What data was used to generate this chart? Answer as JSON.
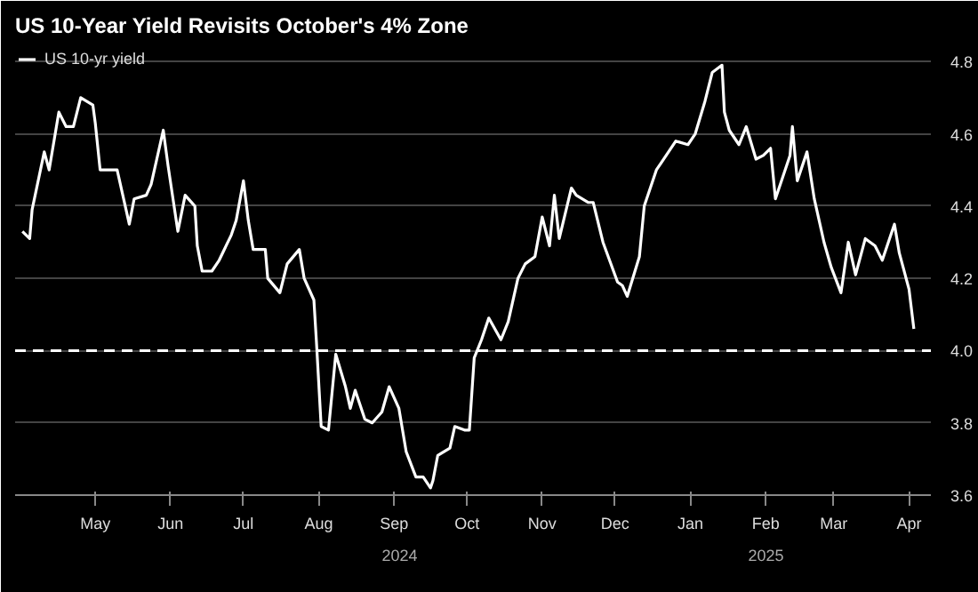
{
  "chart_data": {
    "type": "line",
    "title": "US 10-Year Yield Revisits October's 4% Zone",
    "x": [
      "2024-04-01",
      "2024-04-04",
      "2024-04-05",
      "2024-04-10",
      "2024-04-12",
      "2024-04-16",
      "2024-04-19",
      "2024-04-22",
      "2024-04-25",
      "2024-04-30",
      "2024-05-01",
      "2024-05-03",
      "2024-05-10",
      "2024-05-15",
      "2024-05-17",
      "2024-05-22",
      "2024-05-24",
      "2024-05-29",
      "2024-05-31",
      "2024-06-04",
      "2024-06-07",
      "2024-06-11",
      "2024-06-12",
      "2024-06-14",
      "2024-06-18",
      "2024-06-21",
      "2024-06-26",
      "2024-06-28",
      "2024-07-01",
      "2024-07-03",
      "2024-07-05",
      "2024-07-10",
      "2024-07-11",
      "2024-07-16",
      "2024-07-19",
      "2024-07-24",
      "2024-07-26",
      "2024-07-30",
      "2024-07-31",
      "2024-08-02",
      "2024-08-05",
      "2024-08-08",
      "2024-08-12",
      "2024-08-14",
      "2024-08-16",
      "2024-08-20",
      "2024-08-23",
      "2024-08-27",
      "2024-08-30",
      "2024-09-03",
      "2024-09-06",
      "2024-09-10",
      "2024-09-13",
      "2024-09-16",
      "2024-09-17",
      "2024-09-19",
      "2024-09-24",
      "2024-09-26",
      "2024-09-30",
      "2024-10-02",
      "2024-10-04",
      "2024-10-07",
      "2024-10-10",
      "2024-10-15",
      "2024-10-18",
      "2024-10-22",
      "2024-10-25",
      "2024-10-29",
      "2024-11-01",
      "2024-11-04",
      "2024-11-06",
      "2024-11-08",
      "2024-11-13",
      "2024-11-15",
      "2024-11-20",
      "2024-11-22",
      "2024-11-26",
      "2024-12-02",
      "2024-12-04",
      "2024-12-06",
      "2024-12-11",
      "2024-12-13",
      "2024-12-18",
      "2024-12-20",
      "2024-12-26",
      "2024-12-31",
      "2025-01-03",
      "2025-01-07",
      "2025-01-10",
      "2025-01-14",
      "2025-01-15",
      "2025-01-17",
      "2025-01-21",
      "2025-01-24",
      "2025-01-28",
      "2025-01-31",
      "2025-02-03",
      "2025-02-05",
      "2025-02-11",
      "2025-02-12",
      "2025-02-14",
      "2025-02-18",
      "2025-02-21",
      "2025-02-25",
      "2025-02-28",
      "2025-03-04",
      "2025-03-07",
      "2025-03-10",
      "2025-03-14",
      "2025-03-18",
      "2025-03-21",
      "2025-03-26",
      "2025-03-28",
      "2025-04-01",
      "2025-04-03"
    ],
    "series": [
      {
        "name": "US 10-yr yield",
        "color": "#ffffff",
        "values": [
          4.33,
          4.31,
          4.39,
          4.55,
          4.5,
          4.66,
          4.62,
          4.62,
          4.7,
          4.68,
          4.63,
          4.5,
          4.5,
          4.35,
          4.42,
          4.43,
          4.46,
          4.61,
          4.51,
          4.33,
          4.43,
          4.4,
          4.29,
          4.22,
          4.22,
          4.25,
          4.32,
          4.36,
          4.47,
          4.36,
          4.28,
          4.28,
          4.2,
          4.16,
          4.24,
          4.28,
          4.2,
          4.14,
          4.03,
          3.79,
          3.78,
          3.99,
          3.9,
          3.84,
          3.89,
          3.81,
          3.8,
          3.83,
          3.9,
          3.84,
          3.72,
          3.65,
          3.65,
          3.62,
          3.64,
          3.71,
          3.73,
          3.79,
          3.78,
          3.78,
          3.98,
          4.03,
          4.09,
          4.03,
          4.08,
          4.2,
          4.24,
          4.26,
          4.37,
          4.29,
          4.43,
          4.31,
          4.45,
          4.43,
          4.41,
          4.41,
          4.3,
          4.19,
          4.18,
          4.15,
          4.26,
          4.4,
          4.5,
          4.52,
          4.58,
          4.57,
          4.6,
          4.69,
          4.77,
          4.79,
          4.66,
          4.61,
          4.57,
          4.62,
          4.53,
          4.54,
          4.56,
          4.42,
          4.54,
          4.62,
          4.47,
          4.55,
          4.42,
          4.3,
          4.23,
          4.16,
          4.3,
          4.21,
          4.31,
          4.29,
          4.25,
          4.35,
          4.27,
          4.17,
          4.06
        ]
      }
    ],
    "xlim": [
      "2024-03-29",
      "2025-04-10"
    ],
    "xticks": [
      {
        "value": "2024-05-01",
        "label": "May"
      },
      {
        "value": "2024-06-01",
        "label": "Jun"
      },
      {
        "value": "2024-07-01",
        "label": "Jul"
      },
      {
        "value": "2024-08-01",
        "label": "Aug"
      },
      {
        "value": "2024-09-01",
        "label": "Sep"
      },
      {
        "value": "2024-10-01",
        "label": "Oct"
      },
      {
        "value": "2024-11-01",
        "label": "Nov"
      },
      {
        "value": "2024-12-01",
        "label": "Dec"
      },
      {
        "value": "2025-01-01",
        "label": "Jan"
      },
      {
        "value": "2025-02-01",
        "label": "Feb"
      },
      {
        "value": "2025-03-01",
        "label": "Mar"
      },
      {
        "value": "2025-04-01",
        "label": "Apr"
      }
    ],
    "ylim": [
      3.6,
      4.84
    ],
    "yticks": [
      3.6,
      3.8,
      {
        "value": 4.0,
        "label": "4.0"
      },
      4.2,
      4.4,
      4.6,
      4.8
    ],
    "ref_lines": [
      {
        "axis": "y",
        "value": 4.0,
        "color": "#ffffff",
        "line_style": "dashed"
      }
    ],
    "annotations": [
      "2024",
      "2025"
    ],
    "grid": "y",
    "legend": "top left",
    "line_style": "solid"
  }
}
